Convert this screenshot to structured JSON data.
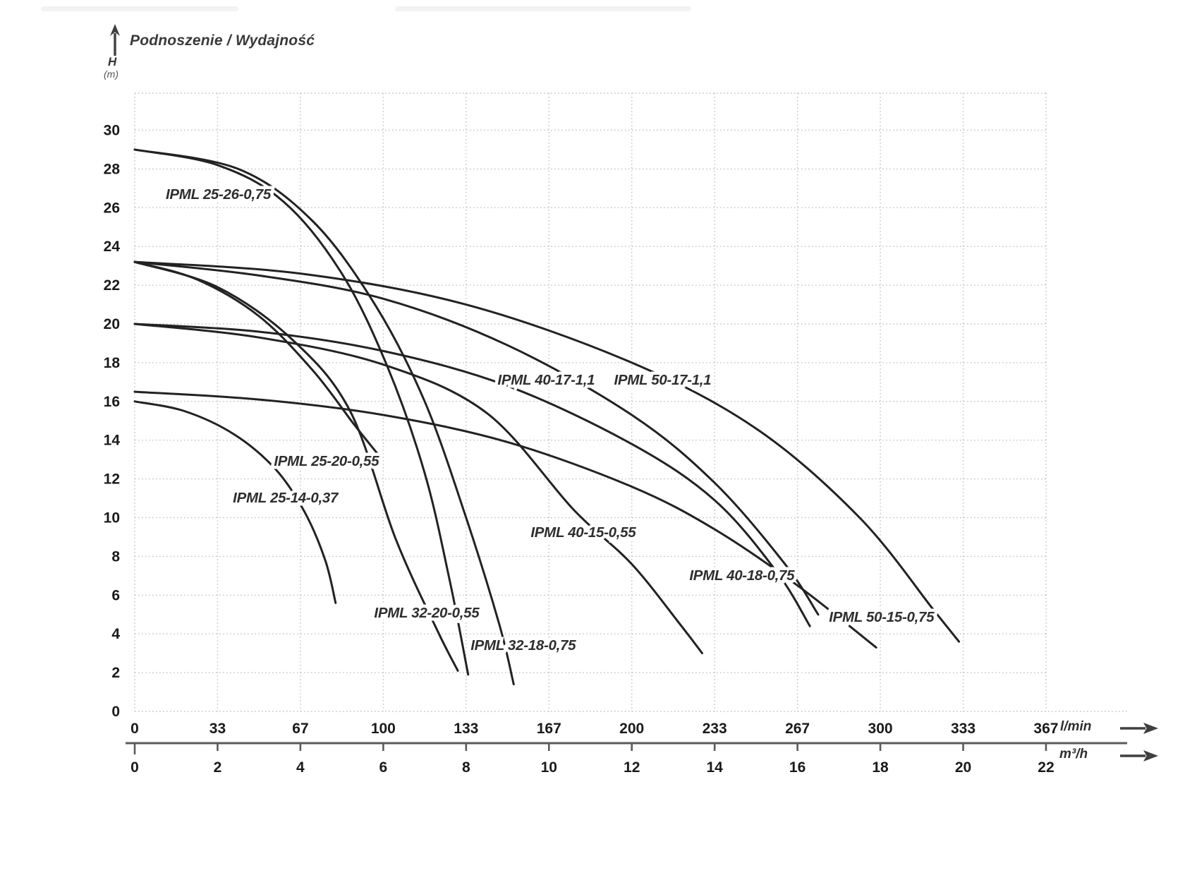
{
  "title": {
    "text": "Podnoszenie / Wydajność"
  },
  "y_axis": {
    "symbol": "H",
    "unit": "(m)",
    "ticks": [
      0,
      2,
      4,
      6,
      8,
      10,
      12,
      14,
      16,
      18,
      20,
      22,
      24,
      26,
      28,
      30
    ]
  },
  "x_axis_primary": {
    "unit": "l/min",
    "ticks": [
      "0",
      "33",
      "67",
      "100",
      "133",
      "167",
      "200",
      "233",
      "267",
      "300",
      "333",
      "367"
    ]
  },
  "x_axis_secondary": {
    "unit": "m³/h",
    "ticks": [
      "0",
      "2",
      "4",
      "6",
      "8",
      "10",
      "12",
      "14",
      "16",
      "18",
      "20",
      "22"
    ]
  },
  "colors": {
    "curve": "#222222",
    "grid": "#c4c4c4",
    "axis": "#5a5a5a",
    "tick_text": "#1a1a1a",
    "curve_label": "#2e2e2e",
    "arrow": "#3f3f3f"
  },
  "chart_data": {
    "type": "line",
    "title": "Podnoszenie / Wydajność",
    "ylabel": "H (m)",
    "xlabel_primary": "l/min",
    "xlabel_secondary": "m³/h",
    "x_range_m3h": [
      0,
      22
    ],
    "x_range_lmin": [
      0,
      367
    ],
    "y_range_m": [
      0,
      32
    ],
    "grid": "dotted",
    "legend_position": "inline-curve-labels",
    "series": [
      {
        "name": "IPML 25-26-0,75",
        "label_xy": [
          0.75,
          26.45
        ],
        "points": [
          [
            0,
            29
          ],
          [
            2,
            28.2
          ],
          [
            3.6,
            26.3
          ],
          [
            5,
            22.6
          ],
          [
            6.1,
            17.8
          ],
          [
            7,
            12.3
          ],
          [
            7.6,
            6.8
          ],
          [
            8.05,
            1.9
          ]
        ]
      },
      {
        "name": "IPML 32-18-0,75",
        "label_xy": [
          8.11,
          3.17
        ],
        "points": [
          [
            0,
            29
          ],
          [
            2.5,
            28
          ],
          [
            4.3,
            25.3
          ],
          [
            5.8,
            21
          ],
          [
            7,
            16
          ],
          [
            8,
            10
          ],
          [
            8.8,
            4.5
          ],
          [
            9.15,
            1.4
          ]
        ]
      },
      {
        "name": "IPML 25-20-0,55",
        "label_xy": [
          3.36,
          12.68
        ],
        "points": [
          [
            0,
            23.2
          ],
          [
            1.5,
            22.3
          ],
          [
            3,
            20.4
          ],
          [
            4.3,
            17.6
          ],
          [
            5.3,
            14.8
          ],
          [
            5.9,
            13.2
          ]
        ]
      },
      {
        "name": "IPML 32-20-0,55",
        "label_xy": [
          5.78,
          4.85
        ],
        "points": [
          [
            0,
            23.2
          ],
          [
            2,
            21.9
          ],
          [
            3.8,
            19.2
          ],
          [
            5.2,
            15.5
          ],
          [
            6.3,
            8.9
          ],
          [
            7.3,
            4.2
          ],
          [
            7.8,
            2.1
          ]
        ]
      },
      {
        "name": "IPML 40-17-1,1",
        "label_xy": [
          8.76,
          16.87
        ],
        "points": [
          [
            0,
            23.2
          ],
          [
            3,
            22.5
          ],
          [
            6,
            21.3
          ],
          [
            9,
            18.9
          ],
          [
            12,
            15.3
          ],
          [
            14,
            11.8
          ],
          [
            15.7,
            7.6
          ],
          [
            16.5,
            5.0
          ]
        ]
      },
      {
        "name": "IPML 50-17-1,1",
        "label_xy": [
          11.57,
          16.87
        ],
        "points": [
          [
            0,
            23.2
          ],
          [
            4,
            22.6
          ],
          [
            8,
            21
          ],
          [
            12,
            18
          ],
          [
            15,
            14.6
          ],
          [
            17.5,
            10
          ],
          [
            19.3,
            5.2
          ],
          [
            19.9,
            3.6
          ]
        ]
      },
      {
        "name": "IPML 40-18-0,75",
        "label_xy": [
          13.39,
          6.78
        ],
        "points": [
          [
            0,
            20
          ],
          [
            3,
            19.6
          ],
          [
            6,
            18.6
          ],
          [
            9,
            16.8
          ],
          [
            12,
            13.8
          ],
          [
            14,
            10.9
          ],
          [
            15.5,
            7.2
          ],
          [
            16.3,
            4.4
          ]
        ]
      },
      {
        "name": "IPML 40-15-0,55",
        "label_xy": [
          9.56,
          9.0
        ],
        "points": [
          [
            0,
            20
          ],
          [
            3,
            19.3
          ],
          [
            6,
            17.9
          ],
          [
            8.5,
            15.4
          ],
          [
            10.6,
            10.4
          ],
          [
            12,
            7.6
          ],
          [
            13.2,
            4.4
          ],
          [
            13.7,
            3.0
          ]
        ]
      },
      {
        "name": "IPML 50-15-0,75",
        "label_xy": [
          16.76,
          4.63
        ],
        "points": [
          [
            0,
            16.5
          ],
          [
            3,
            16.1
          ],
          [
            6,
            15.3
          ],
          [
            9,
            13.9
          ],
          [
            12,
            11.6
          ],
          [
            14,
            9.4
          ],
          [
            16,
            6.5
          ],
          [
            17.9,
            3.3
          ]
        ]
      },
      {
        "name": "IPML 25-14-0,37",
        "label_xy": [
          2.37,
          10.78
        ],
        "points": [
          [
            0,
            16
          ],
          [
            1.2,
            15.5
          ],
          [
            2.4,
            14.3
          ],
          [
            3.4,
            12.5
          ],
          [
            4.1,
            10.3
          ],
          [
            4.6,
            7.8
          ],
          [
            4.85,
            5.6
          ]
        ]
      }
    ]
  }
}
